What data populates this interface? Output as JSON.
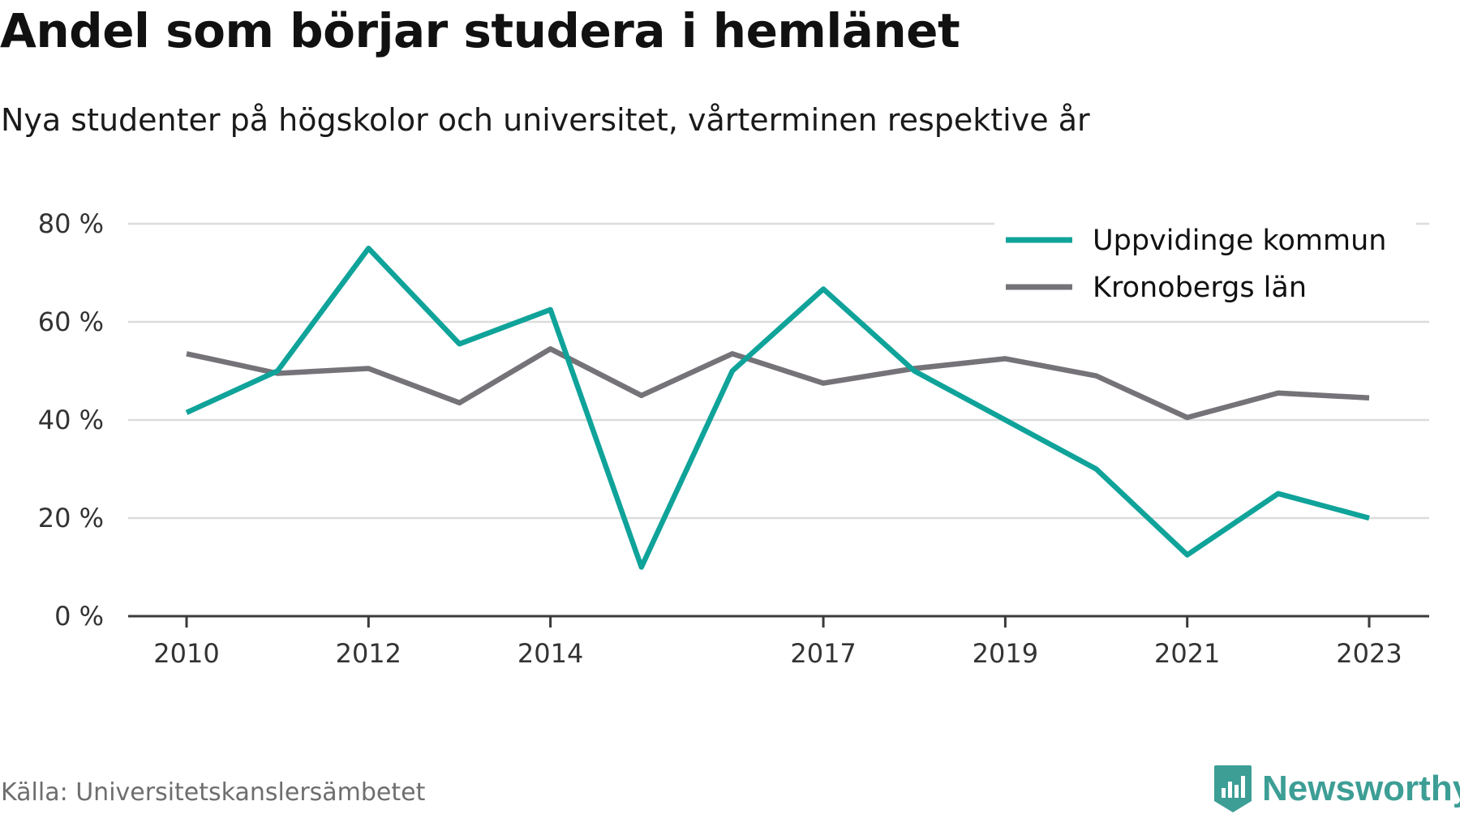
{
  "header": {
    "title": "Andel som börjar studera i hemlänet",
    "subtitle": "Nya studenter på högskolor och universitet, vårterminen respektive år"
  },
  "footer": {
    "source": "Källa: Universitetskanslersämbetet",
    "brand": "Newsworthy",
    "brand_icon": "newsworthy-logo-icon",
    "brand_color": "#3d9e95"
  },
  "chart_data": {
    "type": "line",
    "title": "Andel som börjar studera i hemlänet",
    "subtitle": "Nya studenter på högskolor och universitet, vårterminen respektive år",
    "xlabel": "",
    "ylabel": "",
    "x": [
      2010,
      2011,
      2012,
      2013,
      2014,
      2015,
      2016,
      2017,
      2018,
      2019,
      2020,
      2021,
      2022,
      2023
    ],
    "x_tick_values": [
      2010,
      2012,
      2014,
      2017,
      2019,
      2021,
      2023
    ],
    "x_tick_labels": [
      "2010",
      "2012",
      "2014",
      "2017",
      "2019",
      "2021",
      "2023"
    ],
    "ylim": [
      0,
      80
    ],
    "y_tick_values": [
      0,
      20,
      40,
      60,
      80
    ],
    "y_tick_labels": [
      "0 %",
      "20 %",
      "40 %",
      "60 %",
      "80 %"
    ],
    "grid": true,
    "legend_position": "top-right",
    "series": [
      {
        "name": "Uppvidinge kommun",
        "color": "#0fa39a",
        "values": [
          41.5,
          50,
          75,
          55.5,
          62.5,
          10,
          50,
          66.7,
          50,
          40,
          30,
          12.5,
          25,
          20
        ]
      },
      {
        "name": "Kronobergs län",
        "color": "#757378",
        "values": [
          53.5,
          49.5,
          50.5,
          43.5,
          54.5,
          45,
          53.5,
          47.5,
          50.5,
          52.5,
          49,
          40.5,
          45.5,
          44.5
        ]
      }
    ]
  }
}
